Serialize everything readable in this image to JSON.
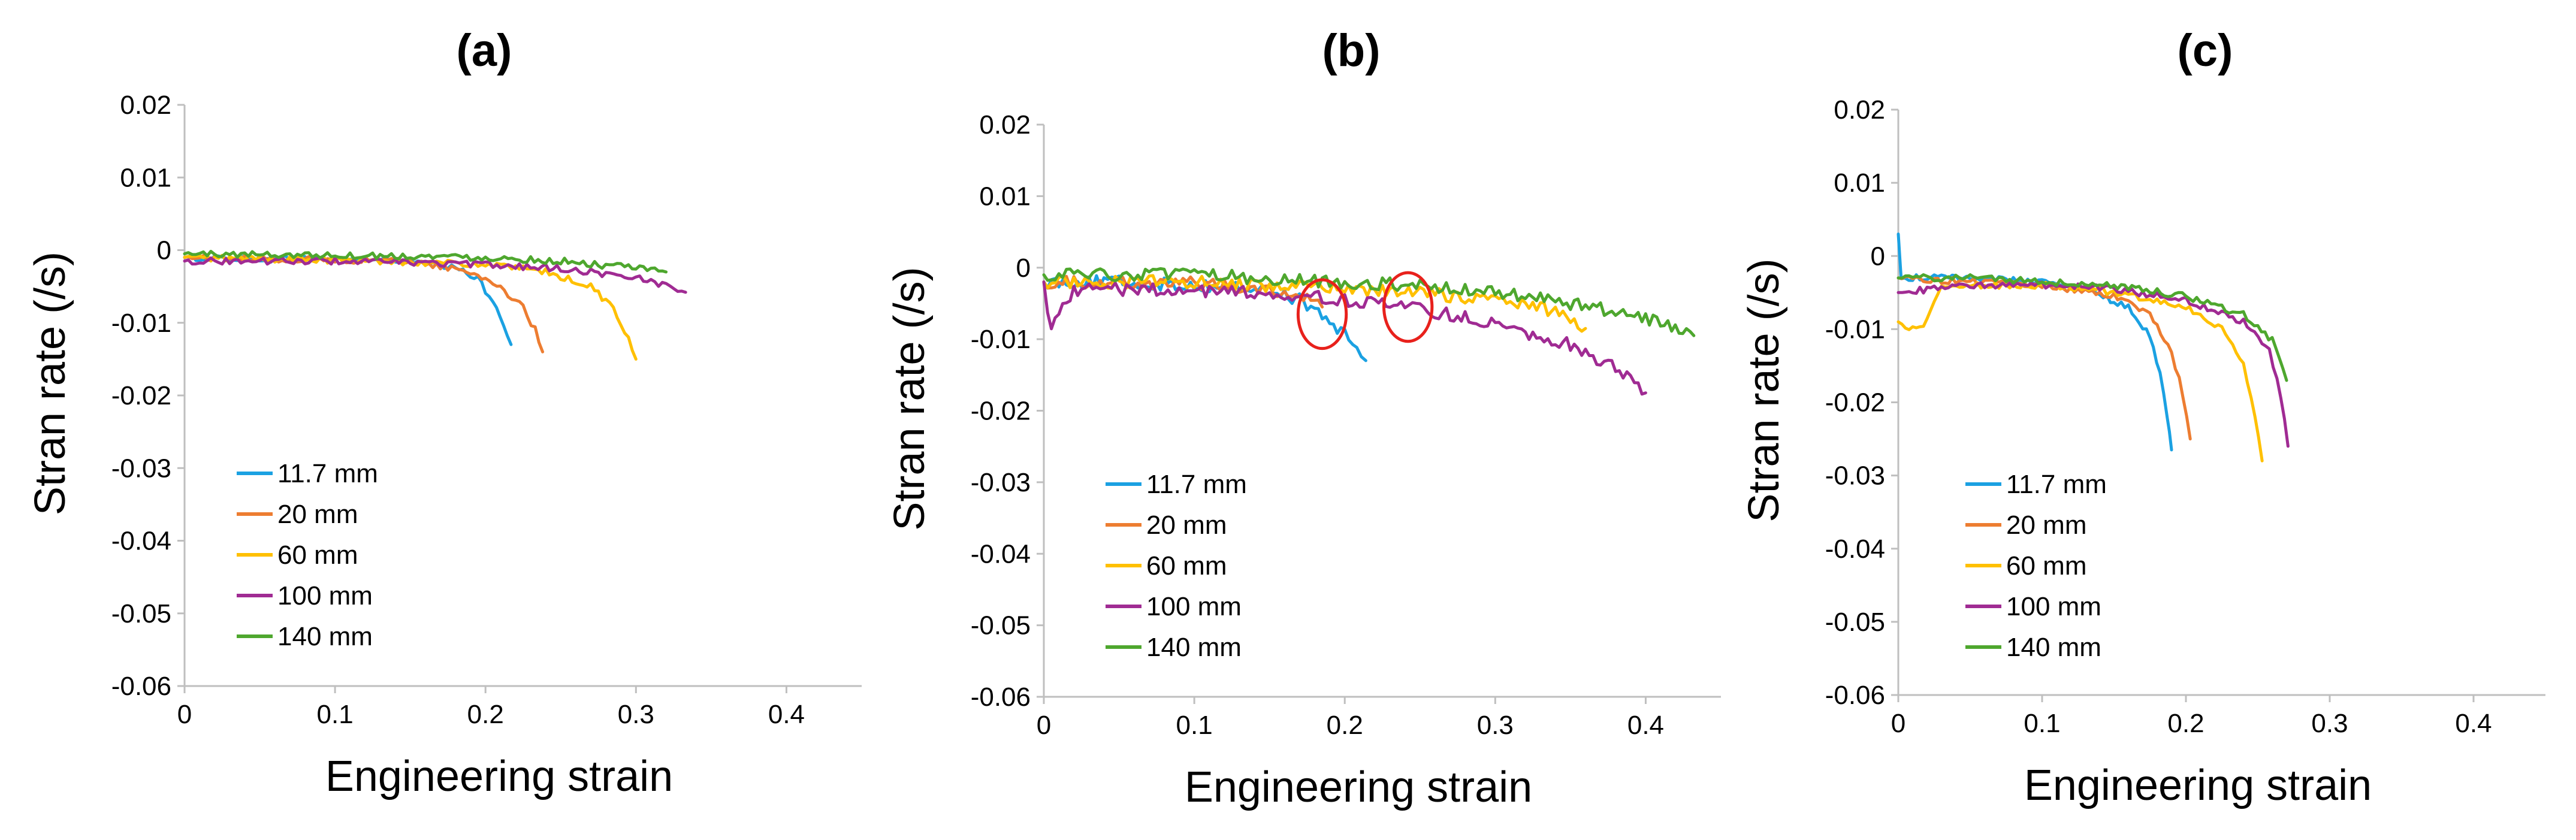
{
  "colors": {
    "11.7 mm": "#1ba1e2",
    "20 mm": "#ed7d31",
    "60 mm": "#ffc000",
    "100 mm": "#a02b93",
    "140 mm": "#4ea72e",
    "annotation": "#e8211c"
  },
  "chart_data": [
    {
      "type": "line",
      "panel_label": "(a)",
      "title": "",
      "xlabel": "Engineering strain",
      "ylabel": "Stran rate (/s)",
      "xlim": [
        0,
        0.45
      ],
      "ylim": [
        -0.06,
        0.02
      ],
      "x_ticks": [
        0,
        0.1,
        0.2,
        0.3,
        0.4
      ],
      "x_tick_labels": [
        "0",
        "0.1",
        "0.2",
        "0.3",
        "0.4"
      ],
      "y_ticks": [
        0.02,
        0.01,
        0,
        -0.01,
        -0.02,
        -0.03,
        -0.04,
        -0.05,
        -0.06
      ],
      "y_tick_labels": [
        "0.02",
        "0.01",
        "0",
        "-0.01",
        "-0.02",
        "-0.03",
        "-0.04",
        "-0.05",
        "-0.06"
      ],
      "grid": false,
      "legend_position": "bottom-left",
      "series": [
        {
          "name": "11.7 mm",
          "x": [
            0,
            0.05,
            0.1,
            0.15,
            0.18,
            0.195,
            0.205,
            0.212,
            0.217
          ],
          "y": [
            -0.001,
            -0.0012,
            -0.0012,
            -0.0015,
            -0.0025,
            -0.004,
            -0.007,
            -0.01,
            -0.013
          ]
        },
        {
          "name": "20 mm",
          "x": [
            0,
            0.05,
            0.1,
            0.15,
            0.19,
            0.21,
            0.225,
            0.233,
            0.238
          ],
          "y": [
            -0.001,
            -0.0012,
            -0.0013,
            -0.0015,
            -0.003,
            -0.005,
            -0.008,
            -0.011,
            -0.014
          ]
        },
        {
          "name": "60 mm",
          "x": [
            0,
            0.05,
            0.1,
            0.15,
            0.2,
            0.24,
            0.27,
            0.285,
            0.295,
            0.3
          ],
          "y": [
            -0.001,
            -0.0012,
            -0.0014,
            -0.0016,
            -0.002,
            -0.003,
            -0.005,
            -0.008,
            -0.012,
            -0.015
          ]
        },
        {
          "name": "100 mm",
          "x": [
            0,
            0.05,
            0.1,
            0.15,
            0.2,
            0.25,
            0.3,
            0.32,
            0.333
          ],
          "y": [
            -0.0015,
            -0.0015,
            -0.0015,
            -0.0017,
            -0.002,
            -0.0025,
            -0.0038,
            -0.0048,
            -0.0058
          ]
        },
        {
          "name": "140 mm",
          "x": [
            0,
            0.05,
            0.1,
            0.15,
            0.2,
            0.25,
            0.3,
            0.32
          ],
          "y": [
            -0.0005,
            -0.0006,
            -0.0007,
            -0.0008,
            -0.001,
            -0.0015,
            -0.0025,
            -0.003
          ]
        }
      ]
    },
    {
      "type": "line",
      "panel_label": "(b)",
      "title": "",
      "xlabel": "Engineering strain",
      "ylabel": "Stran rate (/s)",
      "xlim": [
        0,
        0.45
      ],
      "ylim": [
        -0.06,
        0.02
      ],
      "x_ticks": [
        0,
        0.1,
        0.2,
        0.3,
        0.4
      ],
      "x_tick_labels": [
        "0",
        "0.1",
        "0.2",
        "0.3",
        "0.4"
      ],
      "y_ticks": [
        0.02,
        0.01,
        0,
        -0.01,
        -0.02,
        -0.03,
        -0.04,
        -0.05,
        -0.06
      ],
      "y_tick_labels": [
        "0.02",
        "0.01",
        "0",
        "-0.01",
        "-0.02",
        "-0.03",
        "-0.04",
        "-0.05",
        "-0.06"
      ],
      "grid": false,
      "legend_position": "bottom-left",
      "annotations": [
        {
          "type": "ellipse",
          "x": 0.185,
          "y": -0.0065,
          "rx": 0.016,
          "ry": 0.0048
        },
        {
          "type": "ellipse",
          "x": 0.242,
          "y": -0.0055,
          "rx": 0.016,
          "ry": 0.0048
        }
      ],
      "series": [
        {
          "name": "11.7 mm",
          "x": [
            0,
            0.05,
            0.1,
            0.15,
            0.17,
            0.18,
            0.19,
            0.2,
            0.208,
            0.214
          ],
          "y": [
            -0.002,
            -0.002,
            -0.0025,
            -0.003,
            -0.0045,
            -0.006,
            -0.0075,
            -0.0095,
            -0.011,
            -0.013
          ]
        },
        {
          "name": "20 mm",
          "x": [
            0,
            0.05,
            0.1,
            0.15,
            0.17,
            0.18,
            0.185
          ],
          "y": [
            -0.002,
            -0.002,
            -0.0022,
            -0.003,
            -0.004,
            -0.005,
            -0.0055
          ]
        },
        {
          "name": "60 mm",
          "x": [
            0,
            0.05,
            0.1,
            0.15,
            0.2,
            0.25,
            0.3,
            0.33,
            0.35,
            0.36
          ],
          "y": [
            -0.002,
            -0.002,
            -0.002,
            -0.0025,
            -0.003,
            -0.0035,
            -0.0045,
            -0.0055,
            -0.007,
            -0.0085
          ]
        },
        {
          "name": "100 mm",
          "x": [
            0,
            0.005,
            0.01,
            0.02,
            0.05,
            0.1,
            0.15,
            0.2,
            0.25,
            0.3,
            0.35,
            0.38,
            0.4
          ],
          "y": [
            -0.002,
            -0.009,
            -0.006,
            -0.003,
            -0.003,
            -0.0032,
            -0.0035,
            -0.0045,
            -0.0058,
            -0.0078,
            -0.0108,
            -0.014,
            -0.0175
          ]
        },
        {
          "name": "140 mm",
          "x": [
            0,
            0.05,
            0.1,
            0.15,
            0.2,
            0.25,
            0.3,
            0.35,
            0.4,
            0.432
          ],
          "y": [
            -0.001,
            -0.001,
            -0.001,
            -0.0015,
            -0.002,
            -0.0025,
            -0.0035,
            -0.005,
            -0.007,
            -0.0095
          ]
        }
      ]
    },
    {
      "type": "line",
      "panel_label": "(c)",
      "title": "",
      "xlabel": "Engineering strain",
      "ylabel": "Stran rate (/s)",
      "xlim": [
        0,
        0.45
      ],
      "ylim": [
        -0.06,
        0.02
      ],
      "x_ticks": [
        0,
        0.1,
        0.2,
        0.3,
        0.4
      ],
      "x_tick_labels": [
        "0",
        "0.1",
        "0.2",
        "0.3",
        "0.4"
      ],
      "y_ticks": [
        0.02,
        0.01,
        0,
        -0.01,
        -0.02,
        -0.03,
        -0.04,
        -0.05,
        -0.06
      ],
      "y_tick_labels": [
        "0.02",
        "0.01",
        "0",
        "-0.01",
        "-0.02",
        "-0.03",
        "-0.04",
        "-0.05",
        "-0.06"
      ],
      "grid": false,
      "legend_position": "bottom-left",
      "series": [
        {
          "name": "11.7 mm",
          "x": [
            0,
            0.002,
            0.01,
            0.05,
            0.1,
            0.13,
            0.16,
            0.175,
            0.182,
            0.187,
            0.19
          ],
          "y": [
            0.003,
            -0.003,
            -0.003,
            -0.003,
            -0.0035,
            -0.0045,
            -0.007,
            -0.011,
            -0.016,
            -0.022,
            -0.0265
          ]
        },
        {
          "name": "20 mm",
          "x": [
            0,
            0.05,
            0.1,
            0.15,
            0.175,
            0.19,
            0.198,
            0.203
          ],
          "y": [
            -0.003,
            -0.0035,
            -0.004,
            -0.0055,
            -0.008,
            -0.013,
            -0.019,
            -0.025
          ]
        },
        {
          "name": "60 mm",
          "x": [
            0,
            0.01,
            0.02,
            0.03,
            0.05,
            0.1,
            0.15,
            0.2,
            0.225,
            0.24,
            0.248,
            0.253
          ],
          "y": [
            -0.009,
            -0.01,
            -0.009,
            -0.004,
            -0.004,
            -0.004,
            -0.005,
            -0.007,
            -0.01,
            -0.015,
            -0.022,
            -0.028
          ]
        },
        {
          "name": "100 mm",
          "x": [
            0,
            0.05,
            0.1,
            0.15,
            0.2,
            0.24,
            0.258,
            0.266,
            0.271
          ],
          "y": [
            -0.005,
            -0.004,
            -0.004,
            -0.0045,
            -0.006,
            -0.009,
            -0.013,
            -0.019,
            -0.026
          ]
        },
        {
          "name": "140 mm",
          "x": [
            0,
            0.05,
            0.1,
            0.15,
            0.2,
            0.24,
            0.26,
            0.27
          ],
          "y": [
            -0.003,
            -0.003,
            -0.0035,
            -0.004,
            -0.0055,
            -0.008,
            -0.0115,
            -0.017
          ]
        }
      ]
    }
  ]
}
